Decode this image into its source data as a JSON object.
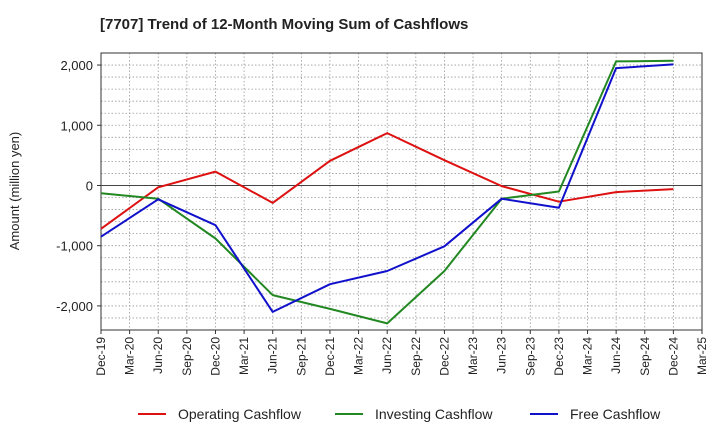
{
  "chart_data": {
    "type": "line",
    "title": "[7707]  Trend of 12-Month Moving Sum of Cashflows",
    "ylabel": "Amount (million yen)",
    "xlabel": "",
    "x": [
      "Dec-19",
      "Mar-20",
      "Jun-20",
      "Sep-20",
      "Dec-20",
      "Mar-21",
      "Jun-21",
      "Sep-21",
      "Dec-21",
      "Mar-22",
      "Jun-22",
      "Sep-22",
      "Dec-22",
      "Mar-23",
      "Jun-23",
      "Sep-23",
      "Dec-23",
      "Mar-24",
      "Jun-24",
      "Sep-24",
      "Dec-24",
      "Mar-25"
    ],
    "ylim": [
      -2400,
      2200
    ],
    "yticks": [
      2000,
      1000,
      0,
      -1000,
      -2000
    ],
    "ytick_labels": [
      "2,000",
      "1,000",
      "0",
      "-1,000",
      "-2,000"
    ],
    "grid": true,
    "legend_position": "bottom",
    "series": [
      {
        "name": "Operating Cashflow",
        "color": "#dd1111",
        "points": [
          {
            "x": "Dec-19",
            "y": -720
          },
          {
            "x": "Jun-20",
            "y": -30
          },
          {
            "x": "Dec-20",
            "y": 230
          },
          {
            "x": "Jun-21",
            "y": -290
          },
          {
            "x": "Dec-21",
            "y": 410
          },
          {
            "x": "Jun-22",
            "y": 870
          },
          {
            "x": "Dec-22",
            "y": 420
          },
          {
            "x": "Jun-23",
            "y": -10
          },
          {
            "x": "Dec-23",
            "y": -270
          },
          {
            "x": "Jun-24",
            "y": -110
          },
          {
            "x": "Dec-24",
            "y": -60
          }
        ]
      },
      {
        "name": "Investing Cashflow",
        "color": "#228822",
        "points": [
          {
            "x": "Dec-19",
            "y": -130
          },
          {
            "x": "Jun-20",
            "y": -220
          },
          {
            "x": "Dec-20",
            "y": -880
          },
          {
            "x": "Jun-21",
            "y": -1820
          },
          {
            "x": "Dec-21",
            "y": -2050
          },
          {
            "x": "Jun-22",
            "y": -2290
          },
          {
            "x": "Dec-22",
            "y": -1420
          },
          {
            "x": "Jun-23",
            "y": -220
          },
          {
            "x": "Dec-23",
            "y": -100
          },
          {
            "x": "Jun-24",
            "y": 2060
          },
          {
            "x": "Dec-24",
            "y": 2070
          }
        ]
      },
      {
        "name": "Free Cashflow",
        "color": "#1111cc",
        "points": [
          {
            "x": "Dec-19",
            "y": -850
          },
          {
            "x": "Jun-20",
            "y": -230
          },
          {
            "x": "Dec-20",
            "y": -660
          },
          {
            "x": "Jun-21",
            "y": -2100
          },
          {
            "x": "Dec-21",
            "y": -1640
          },
          {
            "x": "Jun-22",
            "y": -1420
          },
          {
            "x": "Dec-22",
            "y": -1010
          },
          {
            "x": "Jun-23",
            "y": -220
          },
          {
            "x": "Dec-23",
            "y": -370
          },
          {
            "x": "Jun-24",
            "y": 1950
          },
          {
            "x": "Dec-24",
            "y": 2010
          }
        ]
      }
    ]
  }
}
